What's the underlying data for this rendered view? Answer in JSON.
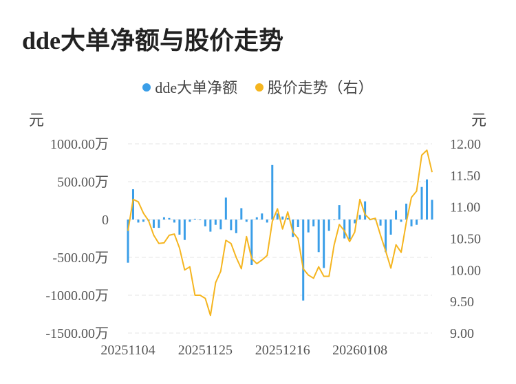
{
  "title": "dde大单净额与股价走势",
  "legend": [
    {
      "label": "dde大单净额",
      "color": "#3a9ee8"
    },
    {
      "label": "股价走势（右）",
      "color": "#f5b51f"
    }
  ],
  "left_unit": "元",
  "right_unit": "元",
  "chart_data": {
    "type": "bar+line",
    "x_tick_labels": [
      "20251104",
      "20251125",
      "20251216",
      "20260108"
    ],
    "x_tick_indices": [
      0,
      15,
      30,
      45
    ],
    "y_left": {
      "range": [
        -1500,
        1000
      ],
      "ticks": [
        1000,
        500,
        0,
        -500,
        -1000,
        -1500
      ],
      "tick_labels": [
        "1000.00万",
        "500.00万",
        "0",
        "-500.00万",
        "-1000.00万",
        "-1500.00万"
      ]
    },
    "y_right": {
      "range": [
        9.0,
        12.0
      ],
      "ticks": [
        12.0,
        11.5,
        11.0,
        10.5,
        10.0,
        9.5,
        9.0
      ],
      "tick_labels": [
        "12.00",
        "11.50",
        "11.00",
        "10.50",
        "10.00",
        "9.50",
        "9.00"
      ]
    },
    "series": [
      {
        "name": "dde大单净额",
        "type": "bar",
        "color": "#3a9ee8",
        "values": [
          -570,
          400,
          -40,
          -30,
          -20,
          -110,
          -110,
          30,
          20,
          -40,
          -200,
          -270,
          -30,
          10,
          0,
          -90,
          -160,
          -70,
          -130,
          290,
          -140,
          -180,
          150,
          -30,
          -600,
          30,
          80,
          -40,
          720,
          80,
          40,
          20,
          -230,
          -100,
          -1070,
          -170,
          -90,
          -430,
          -640,
          -150,
          0,
          190,
          -250,
          -260,
          -50,
          60,
          240,
          -10,
          -10,
          -80,
          -430,
          -200,
          120,
          -30,
          210,
          -90,
          -70,
          430,
          530,
          260
        ]
      },
      {
        "name": "股价走势（右）",
        "type": "line",
        "color": "#f5b51f",
        "values": [
          10.62,
          11.12,
          11.08,
          10.9,
          10.78,
          10.55,
          10.42,
          10.43,
          10.55,
          10.57,
          10.35,
          10.0,
          10.05,
          9.6,
          9.6,
          9.55,
          9.28,
          9.8,
          9.98,
          10.47,
          10.42,
          10.2,
          10.02,
          10.53,
          10.18,
          10.1,
          10.16,
          10.23,
          10.77,
          10.97,
          10.65,
          10.92,
          10.6,
          10.5,
          10.02,
          9.92,
          9.87,
          10.05,
          9.9,
          9.9,
          10.4,
          10.72,
          10.62,
          10.45,
          10.6,
          11.12,
          10.88,
          10.8,
          10.82,
          10.55,
          10.3,
          10.03,
          10.4,
          10.28,
          10.75,
          11.15,
          11.25,
          11.82,
          11.9,
          11.55
        ]
      }
    ]
  }
}
